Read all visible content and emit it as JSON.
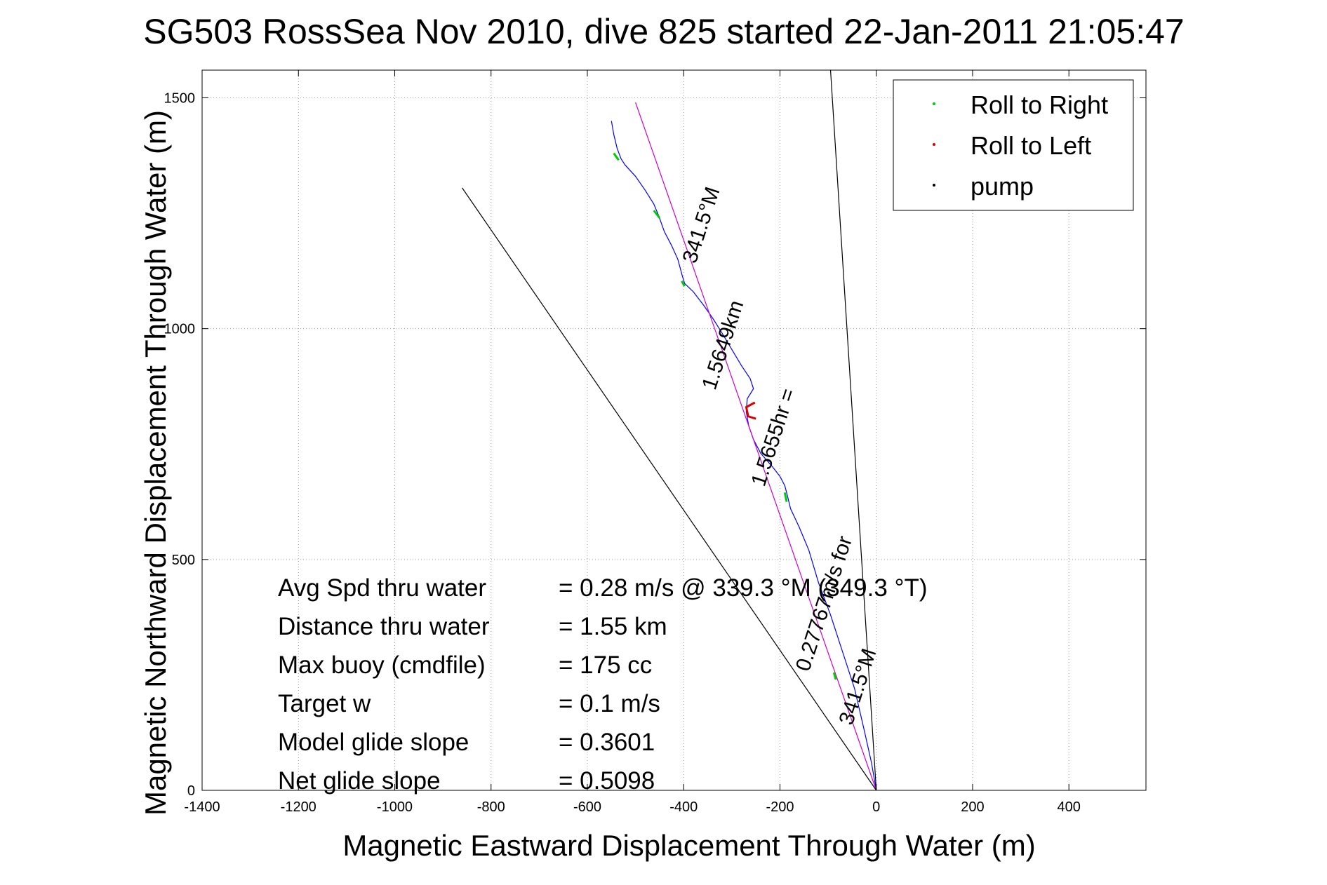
{
  "chart_data": {
    "type": "line",
    "title": "SG503 RossSea Nov 2010, dive 825 started 22-Jan-2011 21:05:47",
    "xlabel": "Magnetic Eastward Displacement Through Water (m)",
    "ylabel": "Magnetic Northward Displacement Through Water (m)",
    "xlim": [
      -1400,
      560
    ],
    "ylim": [
      0,
      1560
    ],
    "xticks": [
      -1400,
      -1200,
      -1000,
      -800,
      -600,
      -400,
      -200,
      0,
      200,
      400
    ],
    "yticks": [
      0,
      500,
      1000,
      1500
    ],
    "grid": true,
    "legend_position": "top-right",
    "legend": [
      {
        "label": "Roll to Right",
        "color": "#00cc00"
      },
      {
        "label": "Roll to Left",
        "color": "#dd0000"
      },
      {
        "label": "pump",
        "color": "#000000"
      }
    ],
    "series": [
      {
        "kind": "track",
        "color": "#0000ff",
        "x": [
          0,
          -10,
          -25,
          -45,
          -70,
          -95,
          -120,
          -140,
          -160,
          -178,
          -185,
          -190,
          -200,
          -215,
          -240,
          -255,
          -265,
          -270,
          -268,
          -255,
          -262,
          -280,
          -300,
          -320,
          -338,
          -358,
          -380,
          -398,
          -403,
          -412,
          -425,
          -440,
          -452,
          -462,
          -480,
          -500,
          -522,
          -530,
          -538,
          -545,
          -550
        ],
        "y": [
          0,
          60,
          130,
          220,
          300,
          380,
          450,
          520,
          570,
          610,
          640,
          660,
          680,
          700,
          730,
          760,
          790,
          820,
          848,
          870,
          892,
          920,
          955,
          990,
          1020,
          1050,
          1080,
          1098,
          1115,
          1150,
          1180,
          1210,
          1245,
          1270,
          1300,
          1330,
          1355,
          1368,
          1390,
          1420,
          1450
        ]
      },
      {
        "kind": "heading-line",
        "color": "#cc00cc",
        "x": [
          0,
          -500
        ],
        "y": [
          0,
          1490
        ]
      },
      {
        "kind": "reference-line",
        "color": "#000000",
        "x": [
          0,
          -860
        ],
        "y": [
          0,
          1305
        ]
      },
      {
        "kind": "reference-line",
        "color": "#000000",
        "x": [
          0,
          -95
        ],
        "y": [
          0,
          1560
        ]
      }
    ],
    "roll_right_segments": [
      {
        "x": [
          -545,
          -535
        ],
        "y": [
          1380,
          1365
        ]
      },
      {
        "x": [
          -462,
          -450
        ],
        "y": [
          1256,
          1240
        ]
      },
      {
        "x": [
          -404,
          -398
        ],
        "y": [
          1103,
          1092
        ]
      },
      {
        "x": [
          -190,
          -186
        ],
        "y": [
          645,
          625
        ]
      },
      {
        "x": [
          -88,
          -84
        ],
        "y": [
          255,
          240
        ]
      }
    ],
    "roll_left_segments": [
      {
        "x": [
          -252,
          -270,
          -266,
          -250
        ],
        "y": [
          840,
          830,
          810,
          805
        ]
      }
    ],
    "annotations": [
      {
        "text": "341.5°M",
        "x": -350,
        "y": 1220,
        "angle": -72
      },
      {
        "text": "1.5649km",
        "x": -305,
        "y": 960,
        "angle": -72
      },
      {
        "text": "1.5655hr =",
        "x": -200,
        "y": 760,
        "angle": -72
      },
      {
        "text": "0.27767m/s for",
        "x": -95,
        "y": 400,
        "angle": -72
      },
      {
        "text": "341.5°M",
        "x": -25,
        "y": 220,
        "angle": -72
      }
    ]
  },
  "stats": [
    {
      "label": "Avg Spd thru water",
      "value": "=  0.28 m/s @ 339.3 °M (349.3 °T)"
    },
    {
      "label": "Distance thru water",
      "value": "=  1.55 km"
    },
    {
      "label": "Max buoy (cmdfile)",
      "value": "= 175 cc"
    },
    {
      "label": "Target w",
      "value": "= 0.1 m/s"
    },
    {
      "label": "Model glide slope",
      "value": "= 0.3601"
    },
    {
      "label": "Net glide slope",
      "value": "= 0.5098"
    }
  ]
}
